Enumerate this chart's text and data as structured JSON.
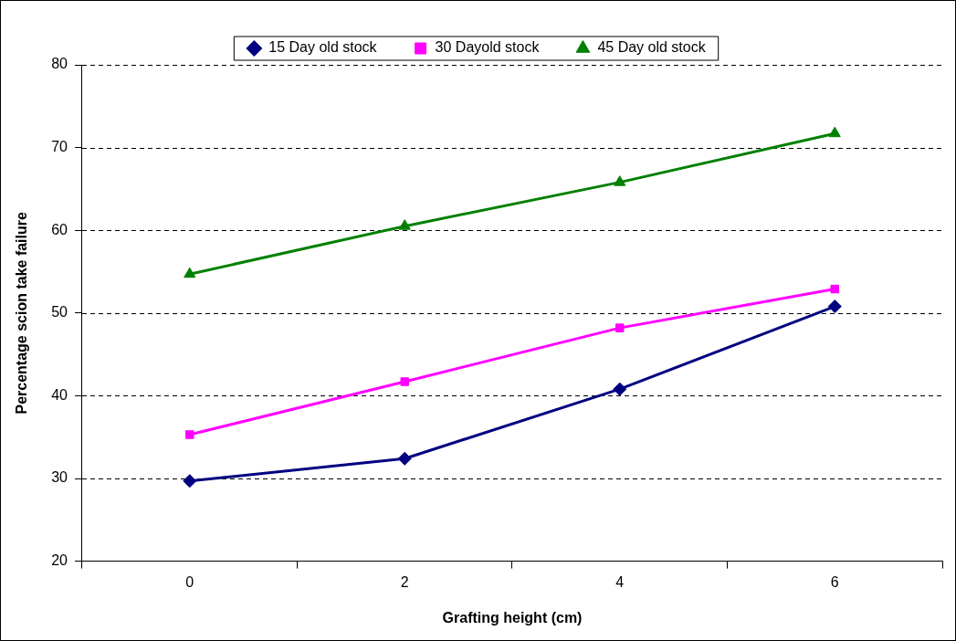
{
  "chart_data": {
    "type": "line",
    "xlabel": "Grafting height (cm)",
    "ylabel": "Percentage scion take failure",
    "categories": [
      "0",
      "2",
      "4",
      "6"
    ],
    "series": [
      {
        "name": "15 Day old stock",
        "color": "#000080",
        "marker": "diamond",
        "values": [
          29.7,
          32.4,
          40.8,
          50.8
        ]
      },
      {
        "name": "30 Dayold stock",
        "color": "#ff00ff",
        "marker": "square",
        "values": [
          35.3,
          41.7,
          48.2,
          52.9
        ]
      },
      {
        "name": "45 Day old stock",
        "color": "#008000",
        "marker": "triangle",
        "values": [
          54.7,
          60.5,
          65.8,
          71.7
        ]
      }
    ],
    "ylim": [
      20,
      80
    ],
    "yticks": [
      20,
      30,
      40,
      50,
      60,
      70,
      80
    ],
    "grid": "y",
    "legend": "top",
    "line_style": "solid"
  }
}
